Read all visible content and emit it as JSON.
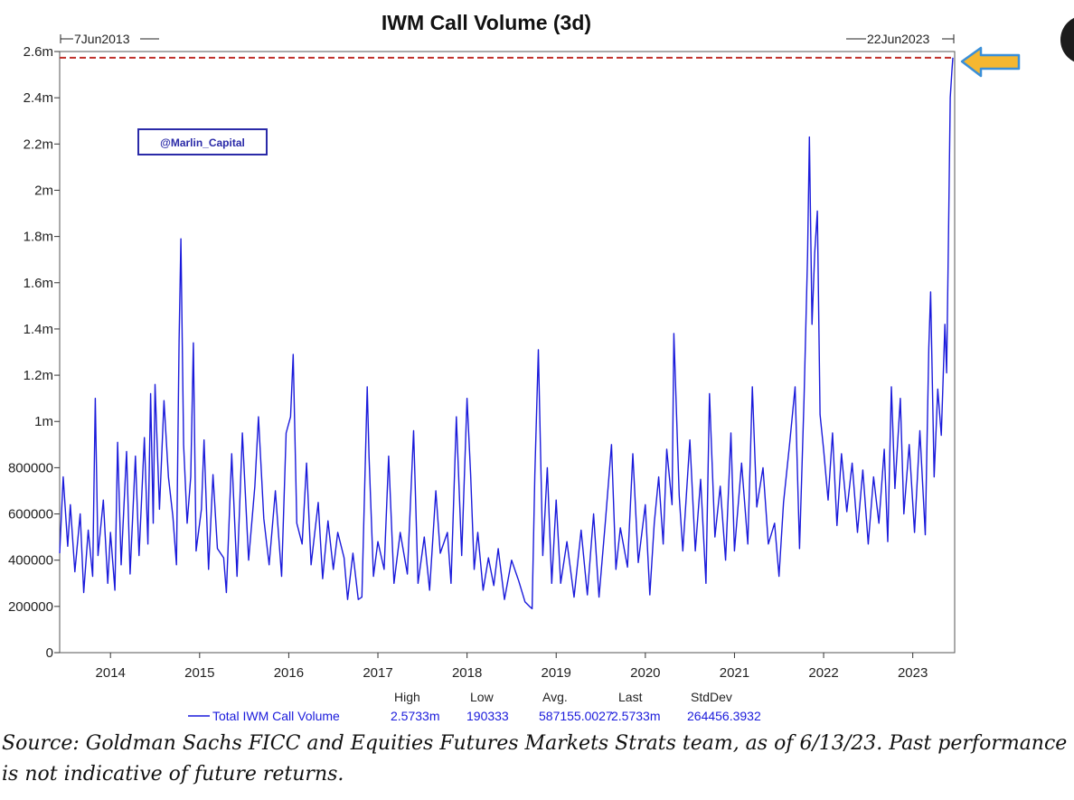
{
  "chart_data": {
    "type": "line",
    "title": "IWM Call Volume (3d)",
    "start_date_label": "7Jun2013",
    "end_date_label": "22Jun2023",
    "x_range": [
      2013.43,
      2023.47
    ],
    "ylim": [
      0,
      2600000
    ],
    "y_ticks": [
      {
        "value": 0,
        "label": "0"
      },
      {
        "value": 200000,
        "label": "200000"
      },
      {
        "value": 400000,
        "label": "400000"
      },
      {
        "value": 600000,
        "label": "600000"
      },
      {
        "value": 800000,
        "label": "800000"
      },
      {
        "value": 1000000,
        "label": "1m"
      },
      {
        "value": 1200000,
        "label": "1.2m"
      },
      {
        "value": 1400000,
        "label": "1.4m"
      },
      {
        "value": 1600000,
        "label": "1.6m"
      },
      {
        "value": 1800000,
        "label": "1.8m"
      },
      {
        "value": 2000000,
        "label": "2m"
      },
      {
        "value": 2200000,
        "label": "2.2m"
      },
      {
        "value": 2400000,
        "label": "2.4m"
      },
      {
        "value": 2600000,
        "label": "2.6m"
      }
    ],
    "x_ticks": [
      {
        "value": 2014,
        "label": "2014"
      },
      {
        "value": 2015,
        "label": "2015"
      },
      {
        "value": 2016,
        "label": "2016"
      },
      {
        "value": 2017,
        "label": "2017"
      },
      {
        "value": 2018,
        "label": "2018"
      },
      {
        "value": 2019,
        "label": "2019"
      },
      {
        "value": 2020,
        "label": "2020"
      },
      {
        "value": 2021,
        "label": "2021"
      },
      {
        "value": 2022,
        "label": "2022"
      },
      {
        "value": 2023,
        "label": "2023"
      }
    ],
    "series": [
      {
        "name": "Total IWM Call Volume",
        "color": "#1a1adb",
        "points": [
          [
            2013.43,
            430000
          ],
          [
            2013.47,
            760000
          ],
          [
            2013.52,
            460000
          ],
          [
            2013.55,
            640000
          ],
          [
            2013.6,
            350000
          ],
          [
            2013.66,
            600000
          ],
          [
            2013.7,
            260000
          ],
          [
            2013.75,
            530000
          ],
          [
            2013.8,
            330000
          ],
          [
            2013.83,
            1100000
          ],
          [
            2013.86,
            420000
          ],
          [
            2013.92,
            660000
          ],
          [
            2013.97,
            300000
          ],
          [
            2014.0,
            520000
          ],
          [
            2014.05,
            270000
          ],
          [
            2014.08,
            910000
          ],
          [
            2014.12,
            380000
          ],
          [
            2014.18,
            870000
          ],
          [
            2014.22,
            340000
          ],
          [
            2014.28,
            850000
          ],
          [
            2014.32,
            420000
          ],
          [
            2014.38,
            930000
          ],
          [
            2014.42,
            470000
          ],
          [
            2014.45,
            1120000
          ],
          [
            2014.48,
            560000
          ],
          [
            2014.5,
            1160000
          ],
          [
            2014.55,
            620000
          ],
          [
            2014.6,
            1090000
          ],
          [
            2014.65,
            760000
          ],
          [
            2014.7,
            590000
          ],
          [
            2014.74,
            380000
          ],
          [
            2014.77,
            1350000
          ],
          [
            2014.79,
            1790000
          ],
          [
            2014.82,
            900000
          ],
          [
            2014.86,
            560000
          ],
          [
            2014.9,
            760000
          ],
          [
            2014.93,
            1340000
          ],
          [
            2014.96,
            440000
          ],
          [
            2015.02,
            620000
          ],
          [
            2015.05,
            920000
          ],
          [
            2015.1,
            360000
          ],
          [
            2015.15,
            770000
          ],
          [
            2015.2,
            450000
          ],
          [
            2015.27,
            410000
          ],
          [
            2015.3,
            260000
          ],
          [
            2015.36,
            860000
          ],
          [
            2015.42,
            330000
          ],
          [
            2015.48,
            950000
          ],
          [
            2015.55,
            400000
          ],
          [
            2015.62,
            720000
          ],
          [
            2015.66,
            1020000
          ],
          [
            2015.72,
            580000
          ],
          [
            2015.78,
            380000
          ],
          [
            2015.85,
            700000
          ],
          [
            2015.92,
            330000
          ],
          [
            2015.97,
            950000
          ],
          [
            2016.02,
            1020000
          ],
          [
            2016.05,
            1290000
          ],
          [
            2016.09,
            560000
          ],
          [
            2016.15,
            470000
          ],
          [
            2016.2,
            820000
          ],
          [
            2016.25,
            380000
          ],
          [
            2016.33,
            650000
          ],
          [
            2016.38,
            320000
          ],
          [
            2016.44,
            570000
          ],
          [
            2016.5,
            360000
          ],
          [
            2016.55,
            520000
          ],
          [
            2016.62,
            410000
          ],
          [
            2016.66,
            230000
          ],
          [
            2016.72,
            430000
          ],
          [
            2016.78,
            230000
          ],
          [
            2016.82,
            240000
          ],
          [
            2016.88,
            1150000
          ],
          [
            2016.9,
            850000
          ],
          [
            2016.95,
            330000
          ],
          [
            2017.0,
            480000
          ],
          [
            2017.07,
            360000
          ],
          [
            2017.12,
            850000
          ],
          [
            2017.18,
            300000
          ],
          [
            2017.25,
            520000
          ],
          [
            2017.33,
            340000
          ],
          [
            2017.4,
            960000
          ],
          [
            2017.45,
            300000
          ],
          [
            2017.52,
            500000
          ],
          [
            2017.58,
            270000
          ],
          [
            2017.65,
            700000
          ],
          [
            2017.7,
            430000
          ],
          [
            2017.78,
            520000
          ],
          [
            2017.82,
            300000
          ],
          [
            2017.88,
            1020000
          ],
          [
            2017.94,
            420000
          ],
          [
            2018.0,
            1100000
          ],
          [
            2018.04,
            770000
          ],
          [
            2018.08,
            360000
          ],
          [
            2018.12,
            520000
          ],
          [
            2018.18,
            270000
          ],
          [
            2018.24,
            410000
          ],
          [
            2018.3,
            290000
          ],
          [
            2018.35,
            450000
          ],
          [
            2018.42,
            230000
          ],
          [
            2018.5,
            400000
          ],
          [
            2018.58,
            310000
          ],
          [
            2018.65,
            220000
          ],
          [
            2018.7,
            200000
          ],
          [
            2018.73,
            190000
          ],
          [
            2018.76,
            770000
          ],
          [
            2018.8,
            1310000
          ],
          [
            2018.85,
            420000
          ],
          [
            2018.9,
            800000
          ],
          [
            2018.95,
            300000
          ],
          [
            2019.0,
            660000
          ],
          [
            2019.05,
            300000
          ],
          [
            2019.12,
            480000
          ],
          [
            2019.2,
            240000
          ],
          [
            2019.28,
            530000
          ],
          [
            2019.35,
            250000
          ],
          [
            2019.42,
            600000
          ],
          [
            2019.48,
            240000
          ],
          [
            2019.55,
            560000
          ],
          [
            2019.62,
            900000
          ],
          [
            2019.67,
            360000
          ],
          [
            2019.72,
            540000
          ],
          [
            2019.8,
            370000
          ],
          [
            2019.86,
            860000
          ],
          [
            2019.92,
            390000
          ],
          [
            2020.0,
            640000
          ],
          [
            2020.05,
            250000
          ],
          [
            2020.1,
            560000
          ],
          [
            2020.15,
            760000
          ],
          [
            2020.2,
            470000
          ],
          [
            2020.24,
            880000
          ],
          [
            2020.3,
            640000
          ],
          [
            2020.32,
            1380000
          ],
          [
            2020.38,
            680000
          ],
          [
            2020.42,
            440000
          ],
          [
            2020.5,
            920000
          ],
          [
            2020.56,
            440000
          ],
          [
            2020.62,
            750000
          ],
          [
            2020.68,
            300000
          ],
          [
            2020.72,
            1120000
          ],
          [
            2020.78,
            500000
          ],
          [
            2020.84,
            720000
          ],
          [
            2020.9,
            400000
          ],
          [
            2020.96,
            950000
          ],
          [
            2021.0,
            440000
          ],
          [
            2021.08,
            820000
          ],
          [
            2021.15,
            470000
          ],
          [
            2021.2,
            1150000
          ],
          [
            2021.25,
            630000
          ],
          [
            2021.32,
            800000
          ],
          [
            2021.38,
            470000
          ],
          [
            2021.45,
            560000
          ],
          [
            2021.5,
            330000
          ],
          [
            2021.55,
            650000
          ],
          [
            2021.62,
            910000
          ],
          [
            2021.68,
            1150000
          ],
          [
            2021.73,
            450000
          ],
          [
            2021.78,
            1100000
          ],
          [
            2021.82,
            1720000
          ],
          [
            2021.84,
            2230000
          ],
          [
            2021.87,
            1420000
          ],
          [
            2021.9,
            1730000
          ],
          [
            2021.93,
            1910000
          ],
          [
            2021.96,
            1030000
          ],
          [
            2022.0,
            880000
          ],
          [
            2022.05,
            660000
          ],
          [
            2022.1,
            950000
          ],
          [
            2022.15,
            550000
          ],
          [
            2022.2,
            860000
          ],
          [
            2022.26,
            610000
          ],
          [
            2022.32,
            820000
          ],
          [
            2022.38,
            520000
          ],
          [
            2022.44,
            790000
          ],
          [
            2022.5,
            470000
          ],
          [
            2022.56,
            760000
          ],
          [
            2022.62,
            560000
          ],
          [
            2022.68,
            880000
          ],
          [
            2022.72,
            480000
          ],
          [
            2022.76,
            1150000
          ],
          [
            2022.8,
            710000
          ],
          [
            2022.86,
            1100000
          ],
          [
            2022.9,
            600000
          ],
          [
            2022.96,
            900000
          ],
          [
            2023.02,
            520000
          ],
          [
            2023.08,
            960000
          ],
          [
            2023.14,
            510000
          ],
          [
            2023.18,
            1320000
          ],
          [
            2023.2,
            1560000
          ],
          [
            2023.24,
            760000
          ],
          [
            2023.28,
            1140000
          ],
          [
            2023.32,
            940000
          ],
          [
            2023.36,
            1420000
          ],
          [
            2023.38,
            1210000
          ],
          [
            2023.4,
            1780000
          ],
          [
            2023.42,
            2400000
          ],
          [
            2023.44,
            2520000
          ],
          [
            2023.45,
            2573300
          ]
        ]
      }
    ],
    "reference_line": {
      "value": 2573300,
      "style": "dashed",
      "color": "#c0302a"
    },
    "annotations": {
      "watermark": "@Marlin_Capital",
      "arrow_color": "#f5b731",
      "arrow_outline": "#3a8fd8"
    },
    "legend": {
      "placement": "bottom-center",
      "series_name": "Total IWM Call Volume",
      "stats_headers": [
        "High",
        "Low",
        "Avg.",
        "Last",
        "StdDev"
      ],
      "stats_values": [
        "2.5733m",
        "190333",
        "587155.0027",
        "2.5733m",
        "264456.3932"
      ]
    }
  },
  "source_note": "Source: Goldman Sachs FICC and Equities Futures Markets Strats team, as of 6/13/23. Past performance is not indicative of future returns."
}
